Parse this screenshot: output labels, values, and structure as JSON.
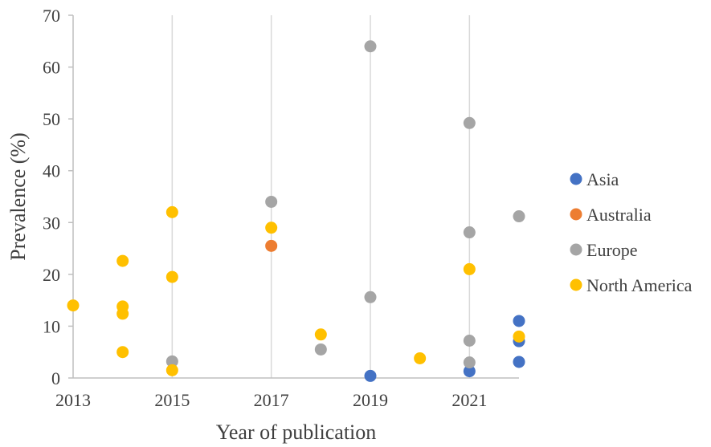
{
  "chart_data": {
    "type": "scatter",
    "xlabel": "Year of publication",
    "ylabel": "Prevalence (%)",
    "xlim": [
      2013,
      2022
    ],
    "ylim": [
      0,
      70
    ],
    "x_ticks": [
      2013,
      2015,
      2017,
      2019,
      2021
    ],
    "y_ticks": [
      0,
      10,
      20,
      30,
      40,
      50,
      60,
      70
    ],
    "grid": "vertical",
    "legend_position": "right",
    "series": [
      {
        "name": "Asia",
        "color": "#4472C4",
        "points": [
          [
            2019,
            0.4
          ],
          [
            2021,
            1.3
          ],
          [
            2022,
            3.1
          ],
          [
            2022,
            7.1
          ],
          [
            2022,
            11.0
          ]
        ]
      },
      {
        "name": "Australia",
        "color": "#ED7D31",
        "points": [
          [
            2017,
            25.5
          ]
        ]
      },
      {
        "name": "Europe",
        "color": "#A5A5A5",
        "points": [
          [
            2015,
            3.2
          ],
          [
            2017,
            34.0
          ],
          [
            2018,
            5.5
          ],
          [
            2019,
            64.0
          ],
          [
            2019,
            15.6
          ],
          [
            2021,
            49.2
          ],
          [
            2021,
            28.1
          ],
          [
            2021,
            7.2
          ],
          [
            2021,
            3.0
          ],
          [
            2022,
            31.2
          ]
        ]
      },
      {
        "name": "North America",
        "color": "#FFC000",
        "points": [
          [
            2013,
            14.0
          ],
          [
            2014,
            22.6
          ],
          [
            2014,
            13.8
          ],
          [
            2014,
            12.4
          ],
          [
            2014,
            5.0
          ],
          [
            2015,
            32.0
          ],
          [
            2015,
            19.5
          ],
          [
            2015,
            1.5
          ],
          [
            2017,
            29.0
          ],
          [
            2018,
            8.4
          ],
          [
            2020,
            3.8
          ],
          [
            2021,
            21.0
          ],
          [
            2022,
            8.0
          ]
        ]
      }
    ]
  }
}
